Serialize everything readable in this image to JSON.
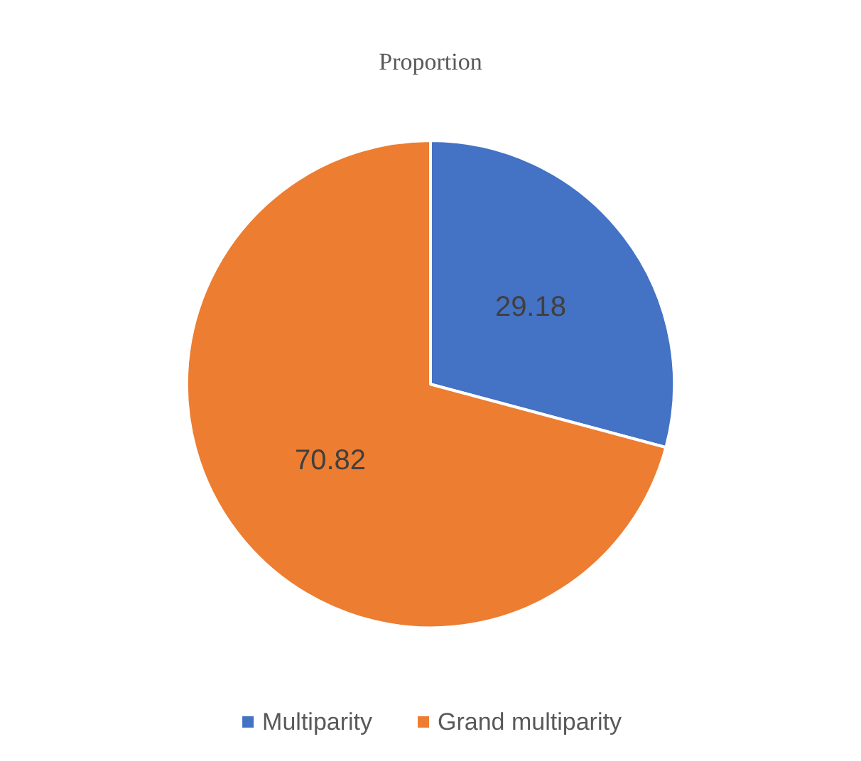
{
  "chart_data": {
    "type": "pie",
    "title": "Proportion",
    "categories": [
      "Multiparity",
      "Grand multiparity"
    ],
    "values": [
      29.18,
      70.82
    ],
    "colors": [
      "#4472c4",
      "#ed7d31"
    ],
    "data_labels": true,
    "legend": "bottom"
  }
}
